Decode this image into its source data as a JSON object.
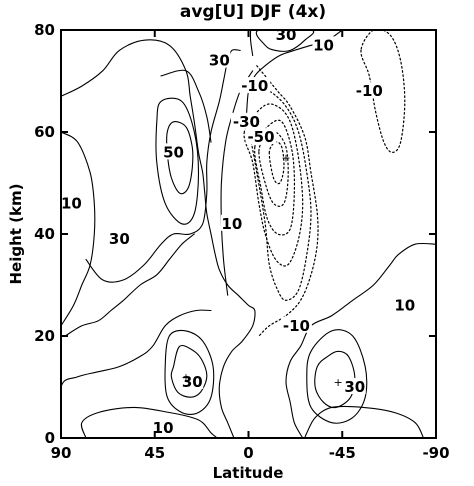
{
  "chart_data": {
    "type": "contour",
    "title": "avg[U] DJF (4x)",
    "xlabel": "Latitude",
    "ylabel": "Height (km)",
    "x_range": [
      90,
      -90
    ],
    "y_range": [
      0,
      80
    ],
    "x_ticks": [
      90,
      45,
      0,
      -45,
      -90
    ],
    "y_ticks": [
      0,
      20,
      40,
      60,
      80
    ],
    "line_styles": {
      "positive": "solid",
      "negative": "dotted"
    },
    "contour_interval": 10,
    "contour_labels": [
      {
        "text": "10",
        "lat": 85,
        "z": 46
      },
      {
        "text": "30",
        "lat": 62,
        "z": 39
      },
      {
        "text": "50",
        "lat": 36,
        "z": 56
      },
      {
        "text": "30",
        "lat": 14,
        "z": 74
      },
      {
        "text": "10",
        "lat": 8,
        "z": 42
      },
      {
        "text": "-10",
        "lat": -3,
        "z": 69
      },
      {
        "text": "-30",
        "lat": 1,
        "z": 62
      },
      {
        "text": "-50",
        "lat": -6,
        "z": 59
      },
      {
        "text": "30",
        "lat": -18,
        "z": 79
      },
      {
        "text": "10",
        "lat": -36,
        "z": 77
      },
      {
        "text": "-10",
        "lat": -58,
        "z": 68
      },
      {
        "text": "-10",
        "lat": -23,
        "z": 22
      },
      {
        "text": "10",
        "lat": -75,
        "z": 26
      },
      {
        "text": "30",
        "lat": 27,
        "z": 11
      },
      {
        "text": "10",
        "lat": 41,
        "z": 2
      },
      {
        "text": "30",
        "lat": -51,
        "z": 10
      }
    ],
    "extrema_markers": [
      {
        "text": "+",
        "lat": 30,
        "z": 12
      },
      {
        "text": "+",
        "lat": -43,
        "z": 11
      },
      {
        "text": "+",
        "lat": -18,
        "z": 55
      }
    ],
    "contours": [
      {
        "value": 10,
        "closed": false,
        "points": [
          [
            78,
            0
          ],
          [
            80,
            3
          ],
          [
            72,
            5
          ],
          [
            55,
            6
          ],
          [
            38,
            5
          ],
          [
            27,
            4
          ],
          [
            22,
            3
          ],
          [
            18,
            1
          ],
          [
            15,
            0
          ]
        ]
      },
      {
        "value": 10,
        "closed": false,
        "points": [
          [
            -84,
            0
          ],
          [
            -80,
            3
          ],
          [
            -70,
            5
          ],
          [
            -55,
            6
          ],
          [
            -40,
            6
          ],
          [
            -32,
            4
          ],
          [
            -28,
            1
          ],
          [
            -27,
            0
          ]
        ]
      },
      {
        "value": 10,
        "closed": false,
        "points": [
          [
            90,
            67
          ],
          [
            80,
            69
          ],
          [
            70,
            72
          ],
          [
            62,
            76
          ],
          [
            50,
            78
          ],
          [
            38,
            77
          ],
          [
            30,
            72
          ],
          [
            28,
            67
          ],
          [
            26,
            62
          ],
          [
            24,
            56
          ],
          [
            22,
            52
          ],
          [
            21,
            48
          ],
          [
            20,
            44
          ],
          [
            18,
            40
          ],
          [
            16,
            36
          ],
          [
            14,
            33
          ],
          [
            10,
            30
          ],
          [
            5,
            28
          ],
          [
            0,
            26
          ],
          [
            -3,
            25
          ],
          [
            -2,
            22
          ],
          [
            3,
            19
          ],
          [
            8,
            17
          ],
          [
            12,
            14
          ],
          [
            14,
            10
          ],
          [
            13,
            6
          ],
          [
            10,
            3
          ],
          [
            7,
            0
          ]
        ]
      },
      {
        "value": 10,
        "closed": false,
        "points": [
          [
            -26,
            0
          ],
          [
            -22,
            3
          ],
          [
            -20,
            7
          ],
          [
            -18,
            11
          ],
          [
            -20,
            15
          ],
          [
            -25,
            18
          ],
          [
            -30,
            22
          ],
          [
            -40,
            24
          ],
          [
            -50,
            27
          ],
          [
            -60,
            30
          ],
          [
            -68,
            34
          ],
          [
            -72,
            36
          ],
          [
            -80,
            38
          ],
          [
            -90,
            38
          ]
        ]
      },
      {
        "value": 10,
        "closed": false,
        "points": [
          [
            -2,
            75
          ],
          [
            -1,
            78
          ],
          [
            -1,
            80
          ]
        ]
      },
      {
        "value": 10,
        "closed": false,
        "points": [
          [
            -45,
            80
          ],
          [
            -38,
            78
          ],
          [
            -30,
            77
          ],
          [
            -22,
            76
          ],
          [
            -15,
            75
          ],
          [
            -8,
            73
          ],
          [
            -3,
            71
          ],
          [
            0,
            68
          ],
          [
            1,
            63
          ]
        ]
      },
      {
        "value": 30,
        "closed": false,
        "points": [
          [
            78,
            35
          ],
          [
            70,
            31
          ],
          [
            60,
            31
          ],
          [
            50,
            34
          ],
          [
            42,
            38
          ],
          [
            36,
            40
          ],
          [
            28,
            40
          ],
          [
            22,
            42
          ],
          [
            20,
            48
          ],
          [
            20,
            54
          ],
          [
            18,
            60
          ],
          [
            14,
            66
          ],
          [
            12,
            70
          ],
          [
            10,
            74
          ],
          [
            8,
            76
          ],
          [
            4,
            76
          ]
        ]
      },
      {
        "value": 30,
        "closed": true,
        "points": [
          [
            36,
            14
          ],
          [
            33,
            18
          ],
          [
            26,
            17
          ],
          [
            22,
            15
          ],
          [
            20,
            12
          ],
          [
            23,
            9
          ],
          [
            28,
            8
          ],
          [
            34,
            9
          ],
          [
            37,
            12
          ]
        ]
      },
      {
        "value": 30,
        "closed": true,
        "points": [
          [
            -38,
            16
          ],
          [
            -33,
            14
          ],
          [
            -32,
            10
          ],
          [
            -36,
            7
          ],
          [
            -42,
            6
          ],
          [
            -49,
            8
          ],
          [
            -51,
            12
          ],
          [
            -48,
            16
          ],
          [
            -43,
            17
          ]
        ]
      },
      {
        "value": 30,
        "closed": true,
        "points": [
          [
            -5,
            80
          ],
          [
            -8,
            77
          ],
          [
            -13,
            76
          ],
          [
            -20,
            76
          ],
          [
            -27,
            78
          ],
          [
            -30,
            80
          ]
        ]
      },
      {
        "value": 50,
        "closed": true,
        "points": [
          [
            36,
            62
          ],
          [
            30,
            61
          ],
          [
            27,
            57
          ],
          [
            27,
            53
          ],
          [
            29,
            49
          ],
          [
            33,
            48
          ],
          [
            37,
            51
          ],
          [
            39,
            56
          ],
          [
            39,
            60
          ]
        ]
      },
      {
        "value": 20,
        "closed": false,
        "points": [
          [
            90,
            60
          ],
          [
            82,
            58
          ],
          [
            76,
            52
          ],
          [
            74,
            46
          ],
          [
            74,
            40
          ],
          [
            76,
            34
          ],
          [
            80,
            30
          ],
          [
            84,
            26
          ],
          [
            90,
            22
          ]
        ]
      },
      {
        "value": 20,
        "closed": false,
        "points": [
          [
            88,
            20
          ],
          [
            80,
            22
          ],
          [
            72,
            23
          ],
          [
            66,
            25
          ],
          [
            60,
            27
          ],
          [
            52,
            30
          ],
          [
            44,
            32
          ],
          [
            38,
            35
          ],
          [
            32,
            38
          ],
          [
            26,
            40
          ]
        ]
      },
      {
        "value": 20,
        "closed": true,
        "points": [
          [
            40,
            14
          ],
          [
            38,
            20
          ],
          [
            30,
            21
          ],
          [
            22,
            19
          ],
          [
            17,
            14
          ],
          [
            18,
            8
          ],
          [
            24,
            5
          ],
          [
            32,
            5
          ],
          [
            39,
            8
          ]
        ]
      },
      {
        "value": 20,
        "closed": true,
        "points": [
          [
            -30,
            17
          ],
          [
            -28,
            12
          ],
          [
            -30,
            6
          ],
          [
            -40,
            3
          ],
          [
            -50,
            4
          ],
          [
            -56,
            8
          ],
          [
            -56,
            14
          ],
          [
            -50,
            20
          ],
          [
            -40,
            21
          ]
        ]
      },
      {
        "value": 40,
        "closed": true,
        "points": [
          [
            42,
            66
          ],
          [
            32,
            66
          ],
          [
            26,
            60
          ],
          [
            24,
            52
          ],
          [
            26,
            44
          ],
          [
            32,
            42
          ],
          [
            40,
            46
          ],
          [
            44,
            54
          ],
          [
            44,
            62
          ]
        ]
      },
      {
        "value": 40,
        "closed": false,
        "points": [
          [
            42,
            71
          ],
          [
            30,
            72
          ],
          [
            24,
            68
          ],
          [
            20,
            63
          ],
          [
            18,
            58
          ]
        ]
      },
      {
        "value": 0,
        "closed": false,
        "points": [
          [
            90,
            0
          ],
          [
            90,
            10
          ],
          [
            82,
            12
          ],
          [
            72,
            13
          ],
          [
            62,
            14
          ],
          [
            52,
            16
          ],
          [
            46,
            18
          ],
          [
            40,
            22
          ],
          [
            33,
            24
          ],
          [
            25,
            25
          ],
          [
            18,
            25
          ]
        ]
      },
      {
        "value": 0,
        "closed": false,
        "points": [
          [
            10,
            28
          ],
          [
            12,
            35
          ],
          [
            13,
            42
          ],
          [
            13,
            50
          ],
          [
            11,
            58
          ],
          [
            8,
            63
          ],
          [
            4,
            68
          ],
          [
            -2,
            72
          ]
        ]
      },
      {
        "value": -10,
        "closed": false,
        "points": [
          [
            -4,
            73
          ],
          [
            -8,
            71
          ],
          [
            -14,
            68
          ],
          [
            -20,
            65
          ],
          [
            -27,
            59
          ],
          [
            -30,
            52
          ],
          [
            -33,
            44
          ],
          [
            -33,
            38
          ],
          [
            -30,
            32
          ],
          [
            -25,
            27
          ],
          [
            -18,
            24
          ],
          [
            -10,
            22
          ],
          [
            -5,
            20
          ]
        ]
      },
      {
        "value": -10,
        "closed": true,
        "points": [
          [
            -54,
            76
          ],
          [
            -58,
            71
          ],
          [
            -61,
            64
          ],
          [
            -65,
            58
          ],
          [
            -69,
            56
          ],
          [
            -73,
            58
          ],
          [
            -75,
            66
          ],
          [
            -73,
            74
          ],
          [
            -68,
            79
          ],
          [
            -60,
            80
          ]
        ]
      },
      {
        "value": -20,
        "closed": false,
        "points": [
          [
            5,
            63
          ],
          [
            0,
            60
          ],
          [
            -4,
            52
          ],
          [
            -8,
            42
          ],
          [
            -10,
            34
          ],
          [
            -14,
            29
          ],
          [
            -18,
            27
          ],
          [
            -24,
            29
          ],
          [
            -28,
            36
          ],
          [
            -30,
            44
          ],
          [
            -28,
            52
          ],
          [
            -24,
            60
          ],
          [
            -18,
            65
          ],
          [
            -10,
            68
          ],
          [
            -4,
            68
          ]
        ]
      },
      {
        "value": -30,
        "closed": true,
        "points": [
          [
            2,
            60
          ],
          [
            -2,
            54
          ],
          [
            -5,
            46
          ],
          [
            -8,
            40
          ],
          [
            -13,
            35
          ],
          [
            -19,
            34
          ],
          [
            -24,
            39
          ],
          [
            -26,
            46
          ],
          [
            -24,
            55
          ],
          [
            -20,
            62
          ],
          [
            -14,
            65
          ],
          [
            -7,
            65
          ]
        ]
      },
      {
        "value": -40,
        "closed": true,
        "points": [
          [
            -3,
            57
          ],
          [
            -6,
            49
          ],
          [
            -9,
            43
          ],
          [
            -14,
            40
          ],
          [
            -20,
            41
          ],
          [
            -22,
            48
          ],
          [
            -21,
            56
          ],
          [
            -16,
            62
          ],
          [
            -9,
            61
          ]
        ]
      },
      {
        "value": -50,
        "closed": true,
        "points": [
          [
            -5,
            56
          ],
          [
            -8,
            50
          ],
          [
            -12,
            46
          ],
          [
            -17,
            46
          ],
          [
            -19,
            51
          ],
          [
            -18,
            57
          ],
          [
            -13,
            60
          ],
          [
            -8,
            59
          ]
        ]
      },
      {
        "value": -60,
        "closed": true,
        "points": [
          [
            -10,
            56
          ],
          [
            -12,
            51
          ],
          [
            -15,
            50
          ],
          [
            -17,
            53
          ],
          [
            -16,
            57
          ],
          [
            -13,
            58
          ]
        ]
      }
    ]
  }
}
